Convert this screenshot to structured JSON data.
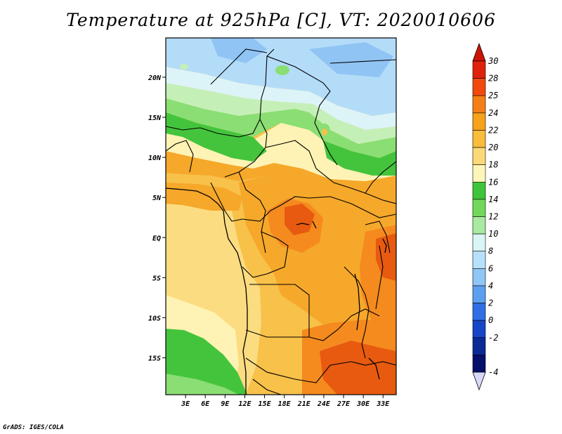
{
  "title": "Temperature at 925hPa [C], VT: 2020010606",
  "credit": "GrADS: IGES/COLA",
  "map": {
    "lat_ticks": [
      "20N",
      "15N",
      "10N",
      "5N",
      "EQ",
      "5S",
      "10S",
      "15S"
    ],
    "lat_values": [
      20,
      15,
      10,
      5,
      0,
      -5,
      -10,
      -15
    ],
    "lon_ticks": [
      "3E",
      "6E",
      "9E",
      "12E",
      "15E",
      "18E",
      "21E",
      "24E",
      "27E",
      "30E",
      "33E"
    ],
    "lon_values": [
      3,
      6,
      9,
      12,
      15,
      18,
      21,
      24,
      27,
      30,
      33
    ],
    "lat_range": [
      -19.6,
      24.9
    ],
    "lon_range": [
      0,
      35
    ]
  },
  "colorbar": {
    "levels": [
      "30",
      "28",
      "25",
      "24",
      "22",
      "20",
      "18",
      "16",
      "14",
      "12",
      "10",
      "8",
      "6",
      "4",
      "2",
      "0",
      "-2",
      "-4"
    ],
    "colors": [
      "#e0220c",
      "#f24a0e",
      "#f57f17",
      "#f6a21b",
      "#f7bd3b",
      "#fcd978",
      "#fef6b8",
      "#3ec43a",
      "#72d85c",
      "#a8eaa0",
      "#d9f5f5",
      "#b7e1fb",
      "#8ec6f5",
      "#5c9ff0",
      "#2f6fe4",
      "#1646c7",
      "#0a2a98",
      "#05106a"
    ],
    "top_cap_color": "#cc1405",
    "bottom_cap_color": "#d8d8f8"
  },
  "fields": {
    "band_colors": {
      "deep_orange": "#e85a10",
      "orange": "#f58a1e",
      "light_orange": "#f6a82a",
      "amber": "#f7c14a",
      "yellow": "#fcdc80",
      "pale": "#fef3b4",
      "green": "#44c43c",
      "light_green": "#8ade74",
      "pale_green": "#c4f0b8",
      "pale_blue": "#dcf4f8",
      "light_blue": "#b3dcf8",
      "blue": "#90c4f4"
    }
  }
}
